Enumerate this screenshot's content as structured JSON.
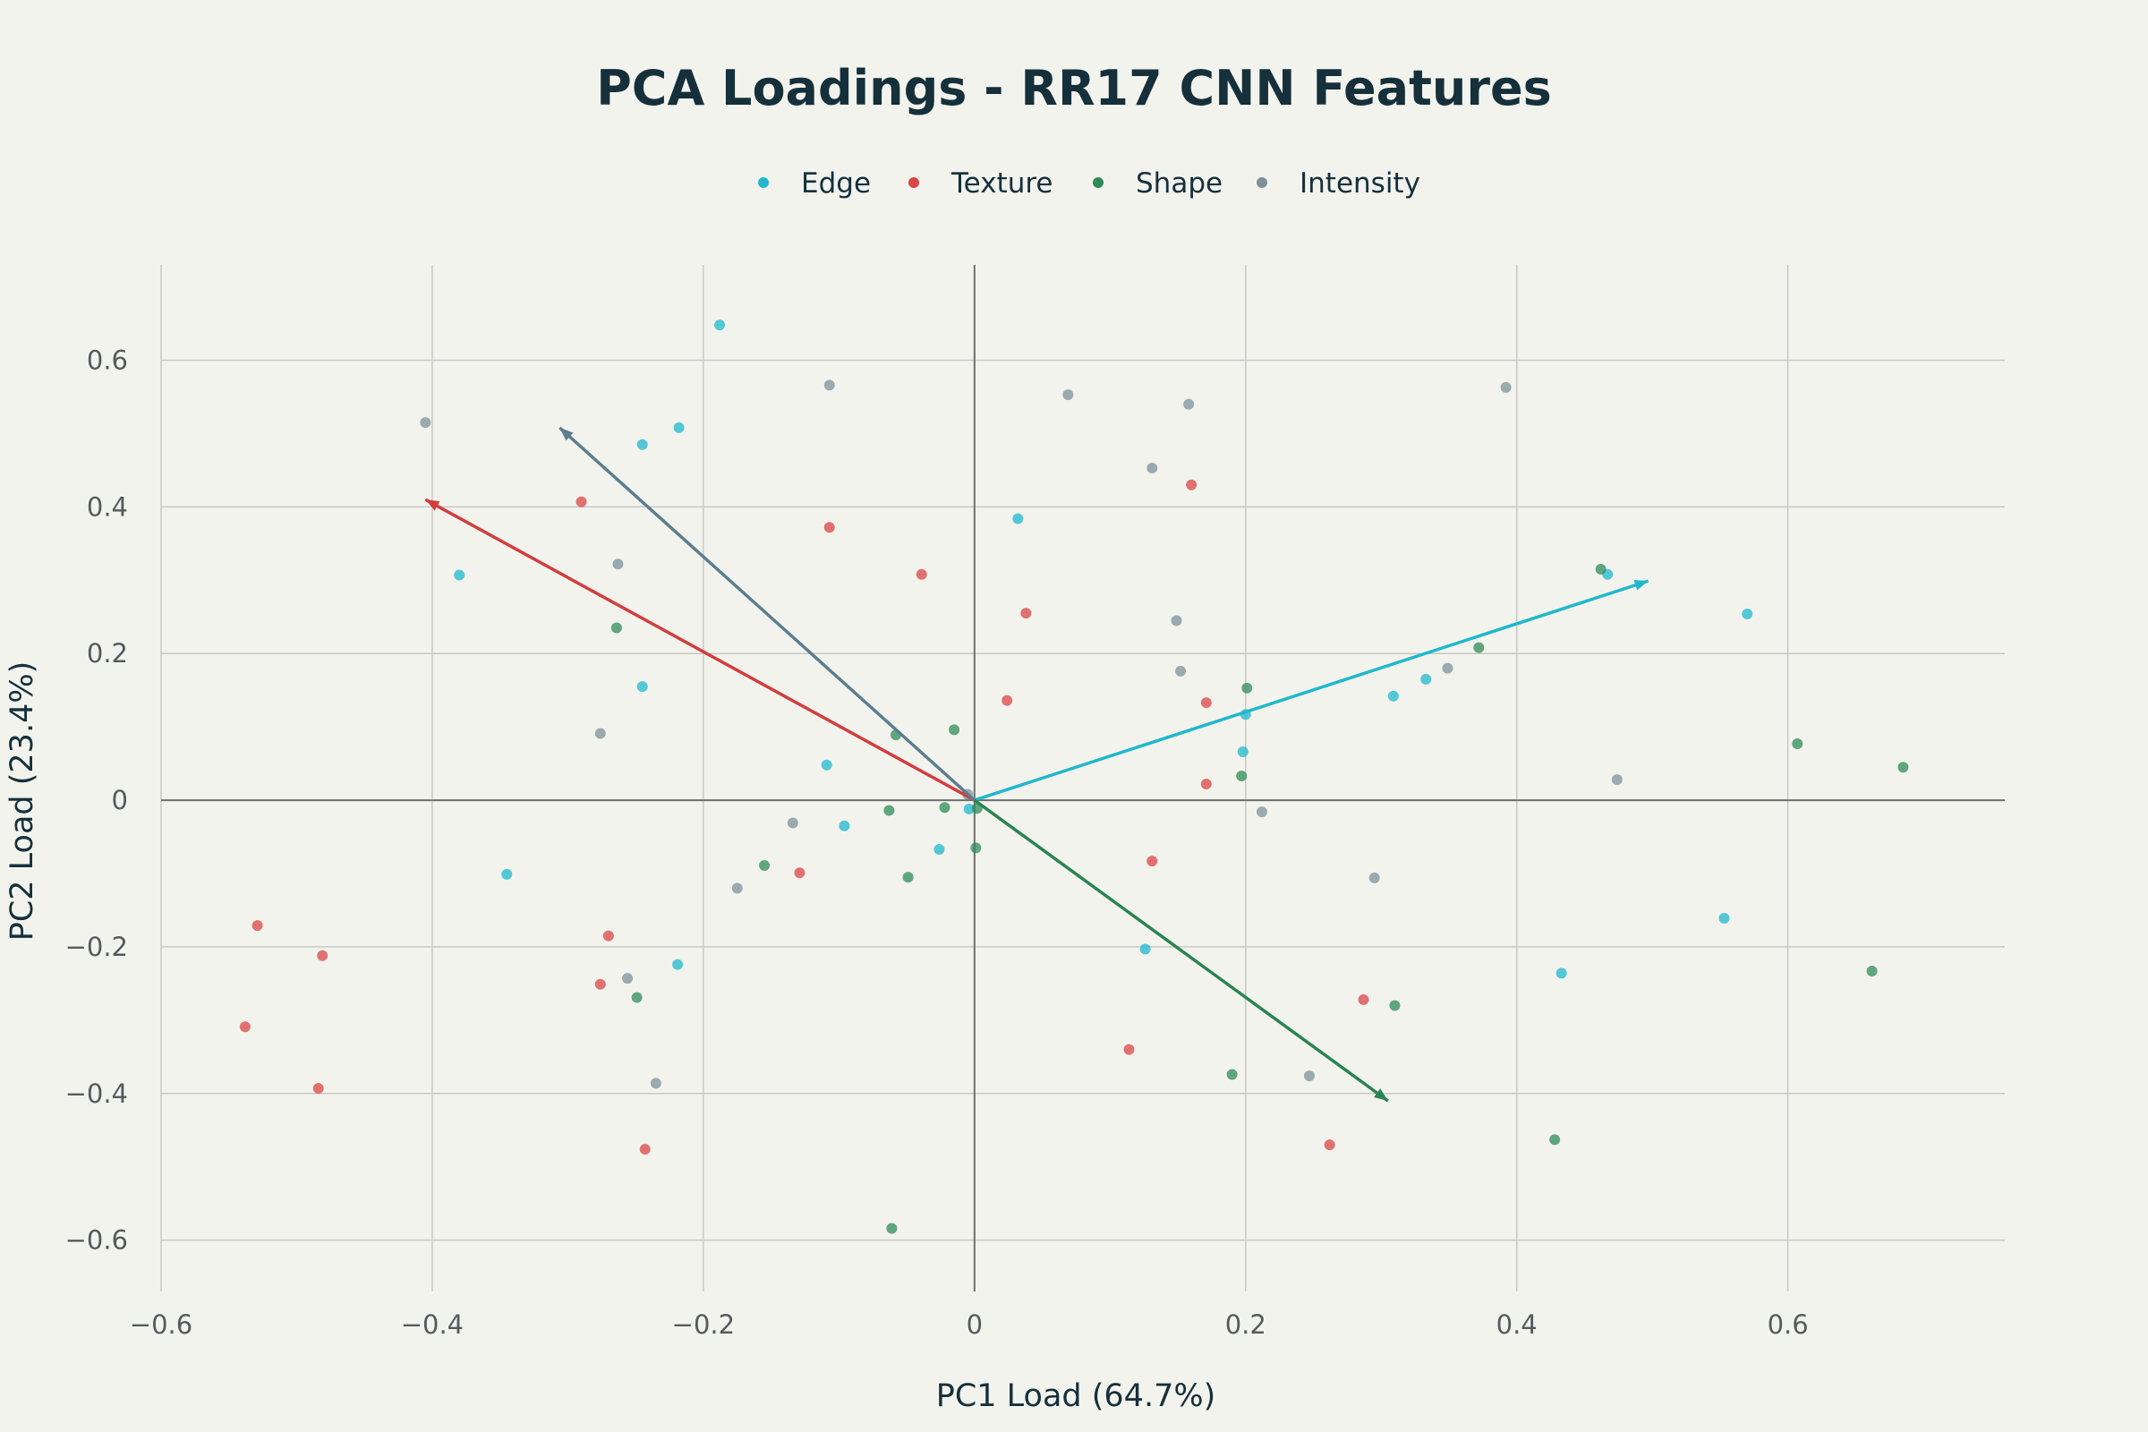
{
  "chart_data": {
    "type": "scatter",
    "title": "PCA Loadings - RR17 CNN Features",
    "xlabel": "PC1 Load (64.7%)",
    "ylabel": "PC2 Load (23.4%)",
    "xlim": [
      -0.6,
      0.76
    ],
    "ylim": [
      -0.67,
      0.73
    ],
    "xticks": [
      -0.6,
      -0.4,
      -0.2,
      0,
      0.2,
      0.4,
      0.6
    ],
    "yticks": [
      -0.6,
      -0.4,
      -0.2,
      0,
      0.2,
      0.4,
      0.6
    ],
    "xtick_labels": [
      "−0.6",
      "−0.4",
      "−0.2",
      "0",
      "0.2",
      "0.4",
      "0.6"
    ],
    "ytick_labels": [
      "−0.6",
      "−0.4",
      "−0.2",
      "0",
      "0.2",
      "0.4",
      "0.6"
    ],
    "grid": true,
    "legend": {
      "position": "top-center",
      "orientation": "horizontal"
    },
    "series": [
      {
        "name": "Edge",
        "color": "#1fb8cd",
        "points": [
          [
            -0.188,
            0.648
          ],
          [
            -0.218,
            0.508
          ],
          [
            -0.245,
            0.485
          ],
          [
            -0.38,
            0.307
          ],
          [
            -0.245,
            0.155
          ],
          [
            -0.109,
            0.048
          ],
          [
            -0.096,
            -0.035
          ],
          [
            -0.026,
            -0.067
          ],
          [
            -0.345,
            -0.101
          ],
          [
            -0.219,
            -0.224
          ],
          [
            0.032,
            0.384
          ],
          [
            0.2,
            0.117
          ],
          [
            0.198,
            0.066
          ],
          [
            0.126,
            -0.203
          ],
          [
            0.309,
            0.142
          ],
          [
            0.333,
            0.165
          ],
          [
            0.467,
            0.308
          ],
          [
            0.57,
            0.254
          ],
          [
            0.553,
            -0.161
          ],
          [
            0.433,
            -0.236
          ],
          [
            -0.004,
            -0.012
          ]
        ],
        "arrow": [
          0.497,
          0.299
        ]
      },
      {
        "name": "Texture",
        "color": "#db4545",
        "points": [
          [
            -0.29,
            0.407
          ],
          [
            -0.107,
            0.372
          ],
          [
            -0.039,
            0.308
          ],
          [
            0.038,
            0.255
          ],
          [
            0.16,
            0.43
          ],
          [
            0.024,
            0.136
          ],
          [
            0.171,
            0.133
          ],
          [
            0.171,
            0.022
          ],
          [
            -0.129,
            -0.099
          ],
          [
            -0.27,
            -0.185
          ],
          [
            -0.276,
            -0.251
          ],
          [
            -0.243,
            -0.476
          ],
          [
            -0.529,
            -0.171
          ],
          [
            -0.481,
            -0.212
          ],
          [
            -0.538,
            -0.309
          ],
          [
            -0.484,
            -0.393
          ],
          [
            0.131,
            -0.083
          ],
          [
            0.114,
            -0.34
          ],
          [
            0.287,
            -0.272
          ],
          [
            0.262,
            -0.47
          ]
        ],
        "arrow": [
          -0.405,
          0.41
        ]
      },
      {
        "name": "Shape",
        "color": "#2e8b57",
        "points": [
          [
            -0.264,
            0.235
          ],
          [
            -0.058,
            0.089
          ],
          [
            -0.015,
            0.096
          ],
          [
            -0.063,
            -0.014
          ],
          [
            -0.022,
            -0.01
          ],
          [
            0.002,
            -0.011
          ],
          [
            0.001,
            -0.065
          ],
          [
            -0.049,
            -0.105
          ],
          [
            -0.155,
            -0.089
          ],
          [
            -0.249,
            -0.269
          ],
          [
            -0.061,
            -0.584
          ],
          [
            0.201,
            0.153
          ],
          [
            0.197,
            0.033
          ],
          [
            0.462,
            0.315
          ],
          [
            0.372,
            0.208
          ],
          [
            0.607,
            0.077
          ],
          [
            0.685,
            0.045
          ],
          [
            0.662,
            -0.233
          ],
          [
            0.31,
            -0.28
          ],
          [
            0.19,
            -0.374
          ],
          [
            0.428,
            -0.463
          ]
        ],
        "arrow": [
          0.305,
          -0.41
        ]
      },
      {
        "name": "Intensity",
        "color": "#7d9199",
        "points": [
          [
            -0.405,
            0.515
          ],
          [
            -0.107,
            0.566
          ],
          [
            0.069,
            0.553
          ],
          [
            0.158,
            0.54
          ],
          [
            0.392,
            0.563
          ],
          [
            0.131,
            0.453
          ],
          [
            -0.263,
            0.322
          ],
          [
            0.149,
            0.245
          ],
          [
            0.152,
            0.176
          ],
          [
            0.349,
            0.18
          ],
          [
            -0.276,
            0.091
          ],
          [
            0.474,
            0.028
          ],
          [
            0.212,
            -0.016
          ],
          [
            -0.134,
            -0.031
          ],
          [
            -0.175,
            -0.12
          ],
          [
            0.295,
            -0.106
          ],
          [
            -0.256,
            -0.243
          ],
          [
            -0.235,
            -0.386
          ],
          [
            0.247,
            -0.376
          ],
          [
            -0.005,
            0.008
          ]
        ],
        "arrow": [
          -0.306,
          0.508
        ]
      }
    ],
    "arrow_colors": {
      "Edge": "#1fb8cd",
      "Texture": "#d13e3e",
      "Shape": "#2a8452",
      "Intensity": "#5c7e8c"
    }
  }
}
